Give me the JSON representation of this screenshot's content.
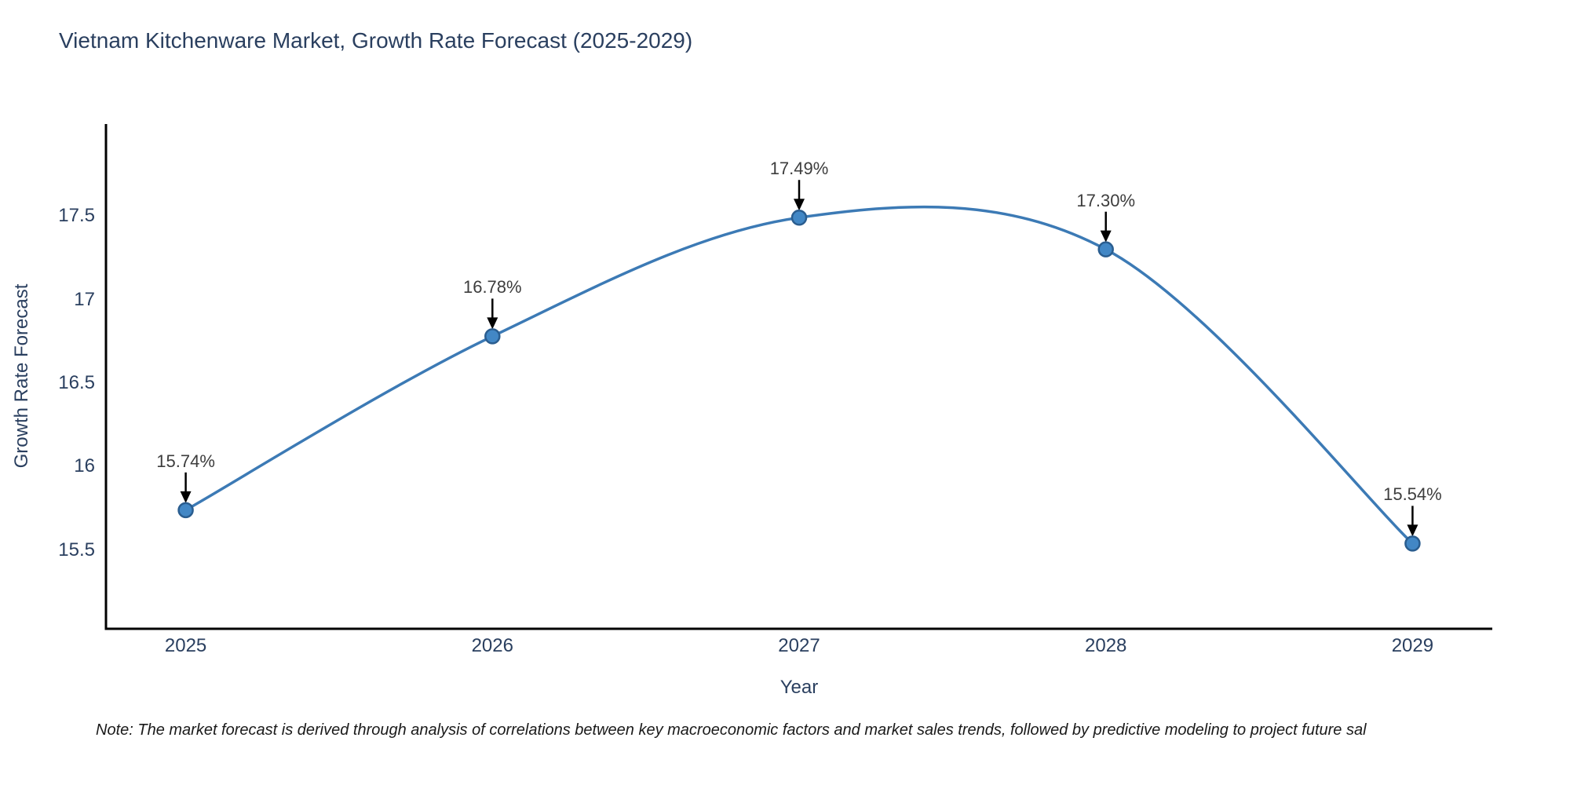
{
  "title": "Vietnam Kitchenware Market, Growth Rate Forecast (2025-2029)",
  "note": "Note: The market forecast is derived through analysis of correlations between key macroeconomic factors and market sales trends, followed by predictive modeling to project future sal",
  "chart_data": {
    "type": "line",
    "line_shape": "spline",
    "title": "Vietnam Kitchenware Market, Growth Rate Forecast (2025-2029)",
    "xlabel": "Year",
    "ylabel": "Growth Rate Forecast",
    "x": [
      2025,
      2026,
      2027,
      2028,
      2029
    ],
    "values": [
      15.74,
      16.78,
      17.49,
      17.3,
      15.54
    ],
    "point_labels": [
      "15.74%",
      "16.78%",
      "17.49%",
      "17.30%",
      "15.54%"
    ],
    "x_tick_labels": [
      "2025",
      "2026",
      "2027",
      "2028",
      "2029"
    ],
    "y_ticks": [
      15.5,
      16,
      16.5,
      17,
      17.5
    ],
    "y_tick_labels": [
      "15.5",
      "16",
      "16.5",
      "17",
      "17.5"
    ],
    "x_range": [
      2024.74,
      2029.26
    ],
    "y_range": [
      15.03,
      18.05
    ],
    "grid": false,
    "legend": "none",
    "colors": {
      "line": "#3c7ab5",
      "marker_fill": "#4287c5",
      "marker_edge": "#2a5d8f",
      "axis_line": "#000000",
      "text": "#2a3f5f",
      "annotation_text": "#3d3d3d",
      "arrow": "#000000",
      "background": "#ffffff"
    }
  }
}
